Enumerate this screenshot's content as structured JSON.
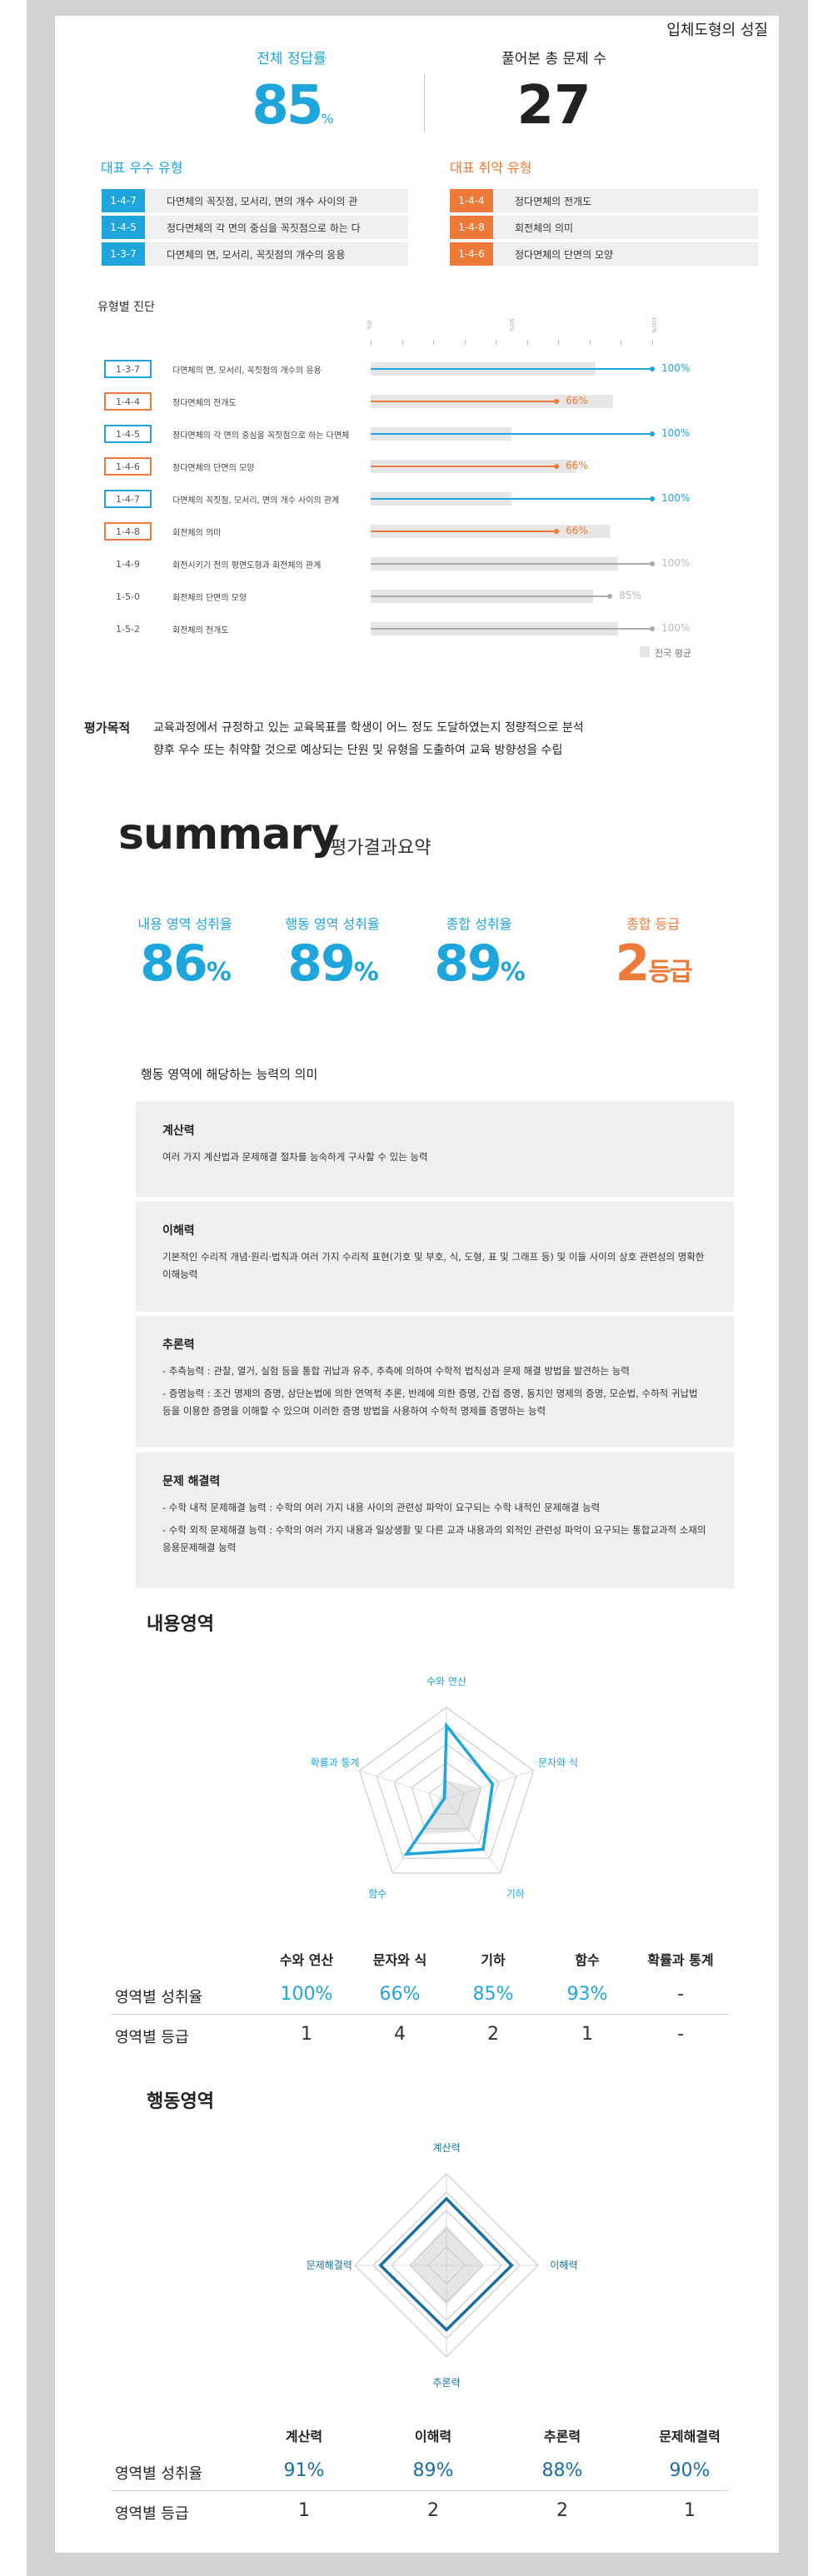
{
  "header": {
    "unit_title": "입체도형의 성질",
    "accuracy_label": "전체 정답률",
    "accuracy_value": "85",
    "accuracy_unit": "%",
    "total_label": "풀어본 총 문제 수",
    "total_value": "27"
  },
  "best_types": {
    "title": "대표 우수 유형",
    "items": [
      {
        "code": "1-4-7",
        "label": "다면체의 꼭짓점, 모서리, 면의 개수 사이의 관"
      },
      {
        "code": "1-4-5",
        "label": "정다면체의 각 면의 중심을 꼭짓점으로 하는 다"
      },
      {
        "code": "1-3-7",
        "label": "다면체의 면, 모서리, 꼭짓점의 개수의 응용"
      }
    ]
  },
  "weak_types": {
    "title": "대표 취약 유형",
    "items": [
      {
        "code": "1-4-4",
        "label": "정다면체의 전개도"
      },
      {
        "code": "1-4-8",
        "label": "회전체의 의미"
      },
      {
        "code": "1-4-6",
        "label": "정다면체의 단면의 모양"
      }
    ]
  },
  "diagnosis": {
    "title": "유형별 진단",
    "ticks": [
      "0%",
      "50%",
      "100%"
    ],
    "legend": "전국 평균",
    "chart_data": {
      "type": "bar",
      "xlim": [
        0,
        100
      ],
      "rows": [
        {
          "code": "1-3-7",
          "label": "다면체의 면, 모서리, 꼭짓점의 개수의 응용",
          "value": 100,
          "value_label": "100%",
          "national_avg": 80,
          "kind": "best"
        },
        {
          "code": "1-4-4",
          "label": "정다면체의 전개도",
          "value": 66,
          "value_label": "66%",
          "national_avg": 86,
          "kind": "weak"
        },
        {
          "code": "1-4-5",
          "label": "정다면체의 각 면의 중심을 꼭짓점으로 하는 다면체",
          "value": 100,
          "value_label": "100%",
          "national_avg": 50,
          "kind": "best"
        },
        {
          "code": "1-4-6",
          "label": "정다면체의 단면의 모양",
          "value": 66,
          "value_label": "66%",
          "national_avg": 73,
          "kind": "weak"
        },
        {
          "code": "1-4-7",
          "label": "다면체의 꼭짓점, 모서리, 면의 개수 사이의 관계",
          "value": 100,
          "value_label": "100%",
          "national_avg": 50,
          "kind": "best"
        },
        {
          "code": "1-4-8",
          "label": "회전체의 의미",
          "value": 66,
          "value_label": "66%",
          "national_avg": 85,
          "kind": "weak"
        },
        {
          "code": "1-4-9",
          "label": "회전시키기 전의 평면도형과 회전체의 관계",
          "value": 100,
          "value_label": "100%",
          "national_avg": 88,
          "kind": "none"
        },
        {
          "code": "1-5-0",
          "label": "회전체의 단면의 모양",
          "value": 85,
          "value_label": "85%",
          "national_avg": 79,
          "kind": "none"
        },
        {
          "code": "1-5-2",
          "label": "회전체의 전개도",
          "value": 100,
          "value_label": "100%",
          "national_avg": 88,
          "kind": "none"
        }
      ]
    }
  },
  "purpose": {
    "label": "평가목적",
    "line1": "교육과정에서 규정하고 있는 교육목표를 학생이 어느 정도 도달하였는지 정량적으로 분석",
    "line2": "향후 우수 또는 취약할 것으로 예상되는 단원 및 유형을 도출하여 교육 방향성을 수립"
  },
  "summary": {
    "title": "summary",
    "subtitle": "평가결과요약",
    "stats": [
      {
        "label": "내용 영역 성취율",
        "value": "86",
        "unit": "%"
      },
      {
        "label": "행동 영역 성취율",
        "value": "89",
        "unit": "%"
      },
      {
        "label": "종합 성취율",
        "value": "89",
        "unit": "%"
      },
      {
        "label": "종합 등급",
        "value": "2",
        "unit": "등급"
      }
    ]
  },
  "abilities": {
    "title": "행동 영역에 해당하는 능력의 의미",
    "items": [
      {
        "name": "계산력",
        "lines": [
          "여러 가지 계산법과 문제해결 절차를 능숙하게 구사할 수 있는 능력"
        ]
      },
      {
        "name": "이해력",
        "lines": [
          "기본적인 수리적 개념·원리·법칙과 여러 가지 수리적 표현(기호 및 부호, 식, 도형, 표 및 그래프 등) 및 이들 사이의 상호 관련성의 명확한 이해능력"
        ]
      },
      {
        "name": "추론력",
        "lines": [
          "- 추측능력 : 관찰, 열거, 실험 등을 통합 귀납과 유추, 추측에 의하여 수학적 법칙성과 문제 해결 방법을 발견하는 능력",
          "- 증명능력 : 조건 명제의 증명, 삼단논법에 의한 연역적 추론, 반례에 의한 증명, 간접 증명, 동치인 명제의 증명, 모순법, 수하적 귀납법 등을 이용한 증명을 이해할 수 있으며 이러한 증명 방법을 사용하여 수학적 명제를 증명하는 능력"
        ]
      },
      {
        "name": "문제 해결력",
        "lines": [
          "- 수학 내적 문제해결 능력 : 수학의 여러 가지 내용 사이의 관련성 파악이 요구되는 수학 내적인 문제해결 능력",
          "- 수학 외적 문제해결 능력 : 수학의 여러 가지 내용과 일상생활 및 다른 교과 내용과의 외적인 관련성 파악이 요구되는 통합교과적 소재의 응용문제해결 능력"
        ]
      }
    ]
  },
  "content_area": {
    "title": "내용영역",
    "row_rate_label": "영역별 성취율",
    "row_grade_label": "영역별 등급",
    "chart_data": {
      "type": "radar",
      "color": "#1ea6dc",
      "axes": [
        "수와 연산",
        "문자와 식",
        "기하",
        "함수",
        "확률과 통계"
      ],
      "values": [
        100,
        66,
        85,
        93,
        null
      ],
      "national_avg": [
        25,
        50,
        55,
        60,
        10
      ],
      "rates": [
        "100%",
        "66%",
        "85%",
        "93%",
        "-"
      ],
      "grades": [
        "1",
        "4",
        "2",
        "1",
        "-"
      ]
    }
  },
  "behavior_area": {
    "title": "행동영역",
    "row_rate_label": "영역별 성취율",
    "row_grade_label": "영역별 등급",
    "chart_data": {
      "type": "radar",
      "color": "#1a6fa0",
      "axes": [
        "계산력",
        "이해력",
        "추론력",
        "문제해결력"
      ],
      "values": [
        91,
        89,
        88,
        90
      ],
      "national_avg": [
        55,
        50,
        55,
        50
      ],
      "rates": [
        "91%",
        "89%",
        "88%",
        "90%"
      ],
      "grades": [
        "1",
        "2",
        "2",
        "1"
      ]
    }
  },
  "colors": {
    "blue": "#1ea6dc",
    "orange": "#ee7a3a",
    "gray": "#e6e6e6"
  }
}
